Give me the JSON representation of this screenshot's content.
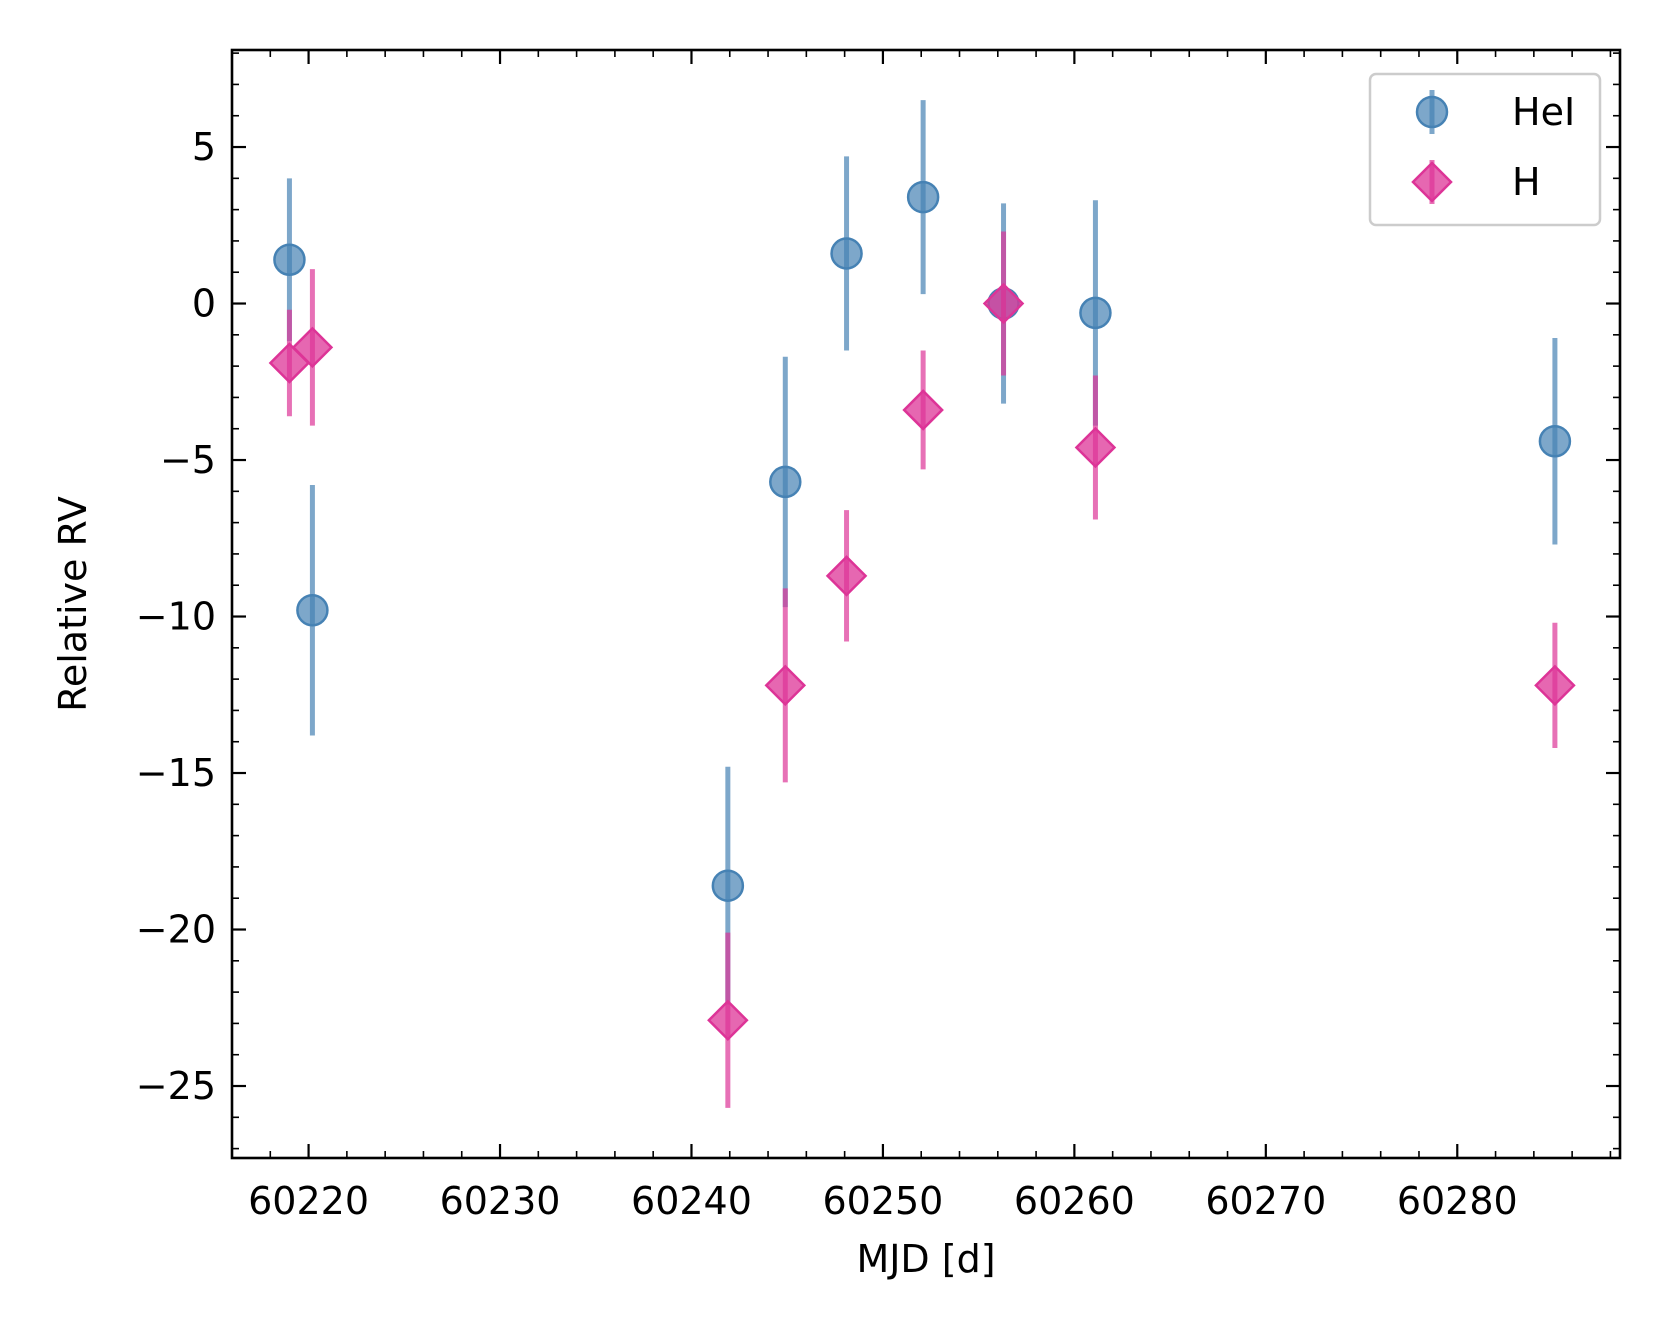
{
  "chart_data": {
    "type": "scatter",
    "title": "",
    "xlabel": "MJD [d]",
    "ylabel": "Relative RV",
    "xlim": [
      60216,
      60288.5
    ],
    "ylim": [
      -27.3,
      8.1
    ],
    "xticks": [
      60220,
      60230,
      60240,
      60250,
      60260,
      60270,
      60280
    ],
    "xtick_labels": [
      "60220",
      "60230",
      "60240",
      "60250",
      "60260",
      "60270",
      "60280"
    ],
    "yticks": [
      5,
      0,
      -5,
      -10,
      -15,
      -20,
      -25
    ],
    "ytick_labels": [
      "5",
      "0",
      "−5",
      "−10",
      "−15",
      "−20",
      "−25"
    ],
    "grid": false,
    "legend_position": "top-right",
    "series": [
      {
        "name": "HeI",
        "marker": "circle",
        "color": "#4682b4",
        "x": [
          60219.0,
          60220.2,
          60241.9,
          60244.9,
          60248.1,
          60252.1,
          60256.3,
          60261.1,
          60285.1
        ],
        "y": [
          1.4,
          -9.8,
          -18.6,
          -5.7,
          1.6,
          3.4,
          0.0,
          -0.3,
          -4.4
        ],
        "yerr": [
          2.6,
          4.0,
          3.8,
          4.0,
          3.1,
          3.1,
          3.2,
          3.6,
          3.3
        ]
      },
      {
        "name": "H",
        "marker": "diamond",
        "color": "#dd3497",
        "x": [
          60219.0,
          60220.2,
          60241.9,
          60244.9,
          60248.1,
          60252.1,
          60256.3,
          60261.1,
          60285.1
        ],
        "y": [
          -1.9,
          -1.4,
          -22.9,
          -12.2,
          -8.7,
          -3.4,
          0.0,
          -4.6,
          -12.2
        ],
        "yerr": [
          1.7,
          2.5,
          2.8,
          3.1,
          2.1,
          1.9,
          2.3,
          2.3,
          2.0
        ]
      }
    ]
  }
}
